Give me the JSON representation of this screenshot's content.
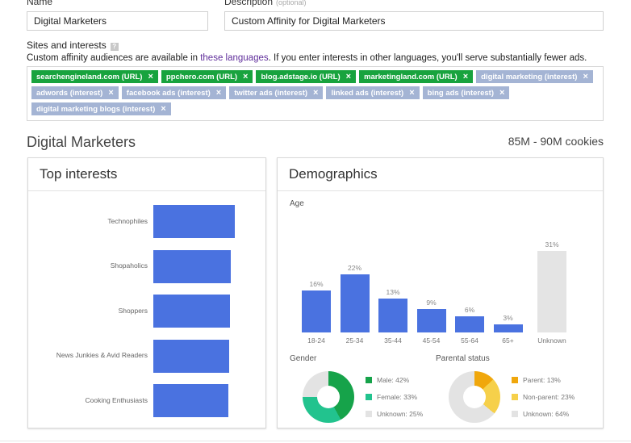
{
  "form": {
    "name_label": "Name",
    "name_value": "Digital Marketers",
    "description_label": "Description",
    "description_optional": "(optional)",
    "description_value": "Custom Affinity for Digital Marketers"
  },
  "sites": {
    "label": "Sites and interests",
    "help": "?",
    "notice_before": "Custom affinity audiences are available in ",
    "notice_link": "these languages",
    "notice_after": ". If you enter interests in other languages, you'll serve substantially fewer ads.",
    "remove_glyph": "×",
    "tags_row1": [
      {
        "label": "searchengineland.com (URL)",
        "kind": "url"
      },
      {
        "label": "ppchero.com (URL)",
        "kind": "url"
      },
      {
        "label": "blog.adstage.io (URL)",
        "kind": "url"
      },
      {
        "label": "marketingland.com (URL)",
        "kind": "url"
      },
      {
        "label": "digital marketing (interest)",
        "kind": "interest"
      }
    ],
    "tags_row2": [
      {
        "label": "adwords (interest)",
        "kind": "interest"
      },
      {
        "label": "facebook ads (interest)",
        "kind": "interest"
      },
      {
        "label": "twitter ads (interest)",
        "kind": "interest"
      },
      {
        "label": "linked ads (interest)",
        "kind": "interest"
      },
      {
        "label": "bing ads (interest)",
        "kind": "interest"
      }
    ],
    "tags_row3": [
      {
        "label": "digital marketing blogs (interest)",
        "kind": "interest"
      }
    ]
  },
  "audience": {
    "title": "Digital Marketers",
    "cookies": "85M - 90M cookies"
  },
  "top_interests": {
    "title": "Top interests",
    "items": [
      {
        "label": "Technophiles",
        "value": 1.0
      },
      {
        "label": "Shopaholics",
        "value": 0.95
      },
      {
        "label": "Shoppers",
        "value": 0.94
      },
      {
        "label": "News Junkies & Avid Readers",
        "value": 0.93
      },
      {
        "label": "Cooking Enthusiasts",
        "value": 0.92
      }
    ]
  },
  "demographics": {
    "title": "Demographics",
    "age_label": "Age",
    "age": [
      {
        "label": "18-24",
        "value": 16,
        "display": "16%"
      },
      {
        "label": "25-34",
        "value": 22,
        "display": "22%"
      },
      {
        "label": "35-44",
        "value": 13,
        "display": "13%"
      },
      {
        "label": "45-54",
        "value": 9,
        "display": "9%"
      },
      {
        "label": "55-64",
        "value": 6,
        "display": "6%"
      },
      {
        "label": "65+",
        "value": 3,
        "display": "3%"
      },
      {
        "label": "Unknown",
        "value": 31,
        "display": "31%"
      }
    ],
    "gender_label": "Gender",
    "gender": [
      {
        "label": "Male: 42%",
        "value": 42,
        "color": "#16a34a"
      },
      {
        "label": "Female: 33%",
        "value": 33,
        "color": "#22c38e"
      },
      {
        "label": "Unknown: 25%",
        "value": 25,
        "color": "#e3e3e3"
      }
    ],
    "parental_label": "Parental status",
    "parental": [
      {
        "label": "Parent: 13%",
        "value": 13,
        "color": "#f0a70c"
      },
      {
        "label": "Non-parent: 23%",
        "value": 23,
        "color": "#f6d04a"
      },
      {
        "label": "Unknown: 64%",
        "value": 64,
        "color": "#e3e3e3"
      }
    ]
  },
  "colors": {
    "bar": "#4a72e0",
    "url_tag": "#18a33e",
    "interest_tag": "#a4b4d4",
    "link": "#5f2d9a"
  }
}
